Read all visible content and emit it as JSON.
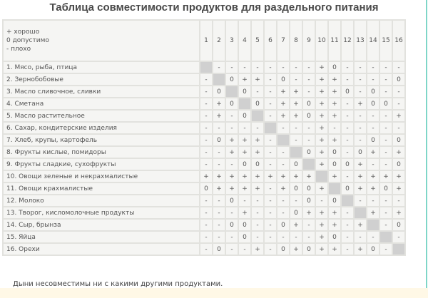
{
  "title": "Таблица совместимости продуктов для раздельного питания",
  "legend": [
    "+ хорошо",
    "0 допустимо",
    "- плохо"
  ],
  "columns": [
    "1",
    "2",
    "3",
    "4",
    "5",
    "6",
    "7",
    "8",
    "9",
    "10",
    "11",
    "12",
    "13",
    "14",
    "15",
    "16"
  ],
  "rows": [
    {
      "label": "1. Мясо, рыба, птица",
      "cells": [
        "",
        "-",
        "-",
        "-",
        "-",
        "-",
        "-",
        "-",
        "-",
        "+",
        "0",
        "-",
        "-",
        "-",
        "-",
        "-"
      ]
    },
    {
      "label": "2. Зернобобовые",
      "cells": [
        "-",
        "",
        "0",
        "+",
        "+",
        "-",
        "0",
        "-",
        "-",
        "+",
        "+",
        "-",
        "-",
        "-",
        "-",
        "0"
      ]
    },
    {
      "label": "3. Масло сливочное, сливки",
      "cells": [
        "-",
        "0",
        "",
        "0",
        "-",
        "-",
        "+",
        "+",
        "-",
        "+",
        "+",
        "0",
        "-",
        "0",
        "-",
        "-"
      ]
    },
    {
      "label": "4. Сметана",
      "cells": [
        "-",
        "+",
        "0",
        "",
        "0",
        "-",
        "+",
        "+",
        "0",
        "+",
        "+",
        "-",
        "+",
        "0",
        "0",
        "-"
      ]
    },
    {
      "label": "5. Масло растительное",
      "cells": [
        "-",
        "+",
        "-",
        "0",
        "",
        "-",
        "+",
        "+",
        "0",
        "+",
        "+",
        "-",
        "-",
        "-",
        "-",
        "+"
      ]
    },
    {
      "label": "6. Сахар, кондитерские изделия",
      "cells": [
        "-",
        "-",
        "-",
        "-",
        "-",
        "",
        "-",
        "-",
        "-",
        "+",
        "-",
        "-",
        "-",
        "-",
        "-",
        "-"
      ]
    },
    {
      "label": "7. Хлеб, крупы, картофель",
      "cells": [
        "-",
        "0",
        "+",
        "+",
        "+",
        "-",
        "",
        "-",
        "-",
        "+",
        "+",
        "-",
        "-",
        "0",
        "-",
        "0"
      ]
    },
    {
      "label": "8. Фрукты кислые, помидоры",
      "cells": [
        "-",
        "-",
        "+",
        "+",
        "+",
        "-",
        "-",
        "",
        "0",
        "+",
        "0",
        "-",
        "0",
        "+",
        "-",
        "+"
      ]
    },
    {
      "label": "9. Фрукты сладкие, сухофрукты",
      "cells": [
        "-",
        "-",
        "-",
        "0",
        "0",
        "-",
        "-",
        "0",
        "",
        "+",
        "0",
        "0",
        "+",
        "-",
        "-",
        "0"
      ]
    },
    {
      "label": "10. Овощи зеленые и некрахмалистые",
      "cells": [
        "+",
        "+",
        "+",
        "+",
        "+",
        "+",
        "+",
        "+",
        "+",
        "",
        "+",
        "-",
        "+",
        "+",
        "+",
        "+"
      ]
    },
    {
      "label": "11. Овощи крахмалистые",
      "cells": [
        "0",
        "+",
        "+",
        "+",
        "+",
        "-",
        "+",
        "0",
        "0",
        "+",
        "",
        "0",
        "+",
        "+",
        "0",
        "+"
      ]
    },
    {
      "label": "12. Молоко",
      "cells": [
        "-",
        "-",
        "0",
        "-",
        "-",
        "-",
        "-",
        "-",
        "0",
        "-",
        "0",
        "",
        "-",
        "-",
        "-",
        "-"
      ]
    },
    {
      "label": "13. Творог, кисломолочные продукты",
      "cells": [
        "-",
        "-",
        "-",
        "+",
        "-",
        "-",
        "-",
        "0",
        "+",
        "+",
        "+",
        "-",
        "",
        "+",
        "-",
        "+"
      ]
    },
    {
      "label": "14. Сыр, брынза",
      "cells": [
        "-",
        "-",
        "0",
        "0",
        "-",
        "-",
        "0",
        "+",
        "-",
        "+",
        "+",
        "-",
        "+",
        "",
        "-",
        "0"
      ]
    },
    {
      "label": "15. Яйца",
      "cells": [
        "-",
        "-",
        "-",
        "0",
        "-",
        "-",
        "-",
        "-",
        "-",
        "+",
        "0",
        "-",
        "-",
        "-",
        "",
        "-"
      ]
    },
    {
      "label": "16. Орехи",
      "cells": [
        "-",
        "0",
        "-",
        "-",
        "+",
        "-",
        "0",
        "+",
        "0",
        "+",
        "+",
        "-",
        "+",
        "0",
        "-",
        ""
      ]
    }
  ],
  "note": "Дыни несовместимы ни с какими другими продуктами."
}
